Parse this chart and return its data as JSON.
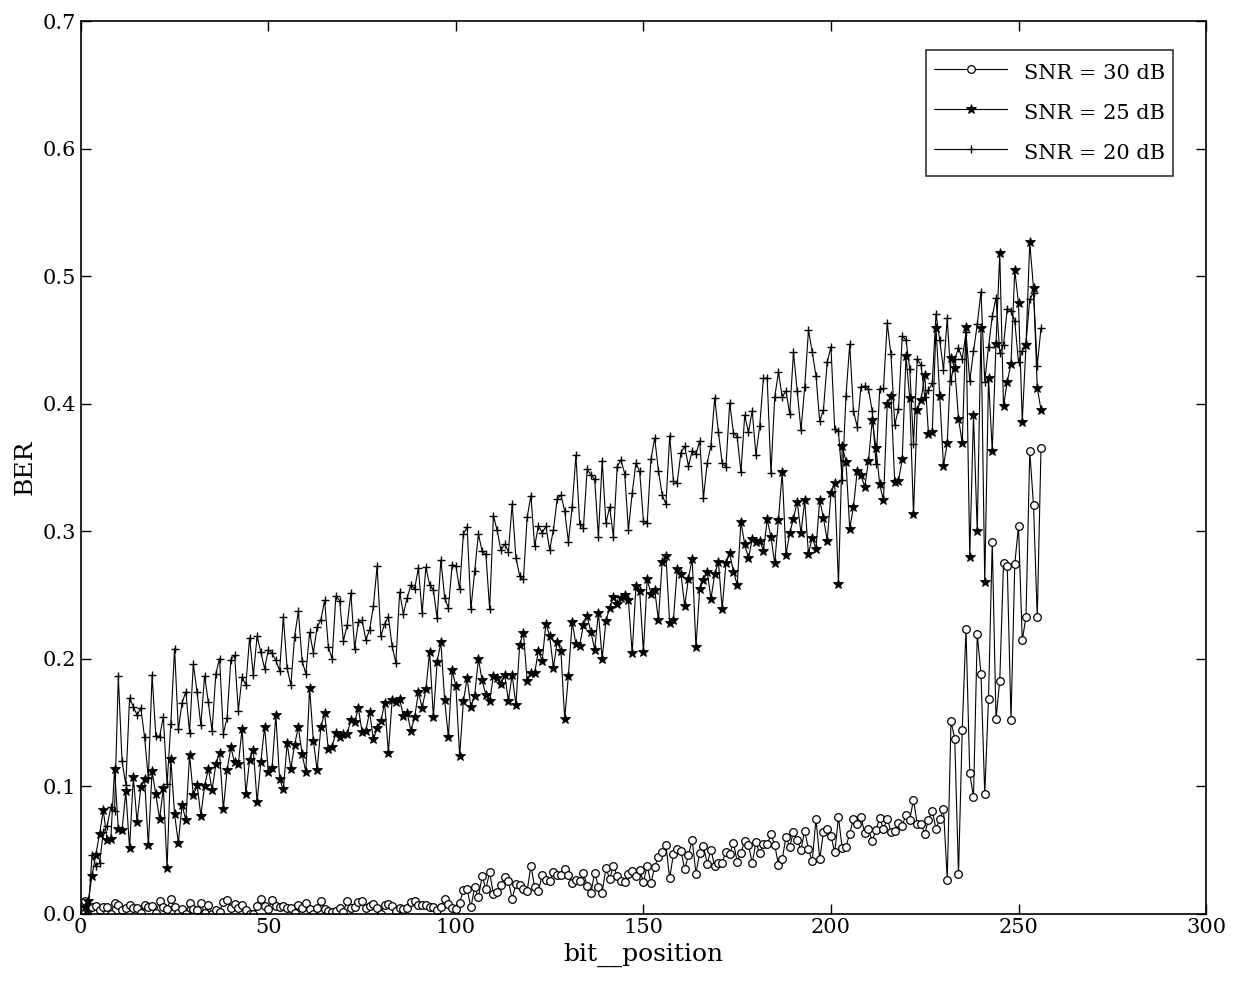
{
  "title": "",
  "xlabel": "bit__position",
  "ylabel": "BER",
  "xlim": [
    0,
    300
  ],
  "ylim": [
    0,
    0.7
  ],
  "xticks": [
    0,
    50,
    100,
    150,
    200,
    250,
    300
  ],
  "yticks": [
    0.0,
    0.1,
    0.2,
    0.3,
    0.4,
    0.5,
    0.6,
    0.7
  ],
  "legend": [
    {
      "label": "SNR = 30 dB",
      "marker": "o"
    },
    {
      "label": "SNR = 25 dB",
      "marker": "*"
    },
    {
      "label": "SNR = 20 dB",
      "marker": "+"
    }
  ],
  "line_color": "#000000",
  "background_color": "#ffffff",
  "figsize": [
    12.4,
    9.81
  ],
  "dpi": 100
}
